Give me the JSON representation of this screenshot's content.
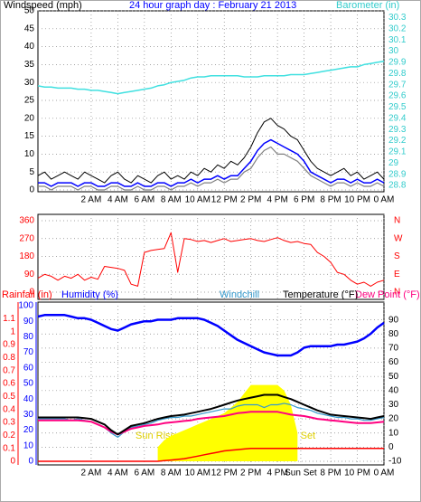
{
  "chart_data": [
    {
      "type": "line",
      "title": "24 hour graph day : February 21 2013",
      "y_label": "Windspeed (mph)",
      "y2_label": "Barometer (in)",
      "grid": true,
      "x": [
        -2,
        -1.5,
        -1,
        -0.5,
        0,
        0.5,
        1,
        1.5,
        2,
        2.5,
        3,
        3.5,
        4,
        4.5,
        5,
        5.5,
        6,
        6.5,
        7,
        7.5,
        8,
        8.5,
        9,
        9.5,
        10,
        10.5,
        11,
        11.5,
        12,
        12.5,
        13,
        13.5,
        14,
        14.5,
        15,
        15.5,
        16,
        16.5,
        17,
        17.5,
        18,
        18.5,
        19,
        19.5,
        20,
        20.5,
        21,
        21.5,
        22,
        22.5,
        23,
        23.5,
        24
      ],
      "xlim": [
        -2,
        24
      ],
      "xticks": [
        {
          "value": 2,
          "label": "2 AM"
        },
        {
          "value": 4,
          "label": "4 AM"
        },
        {
          "value": 6,
          "label": "6 AM"
        },
        {
          "value": 8,
          "label": "8 AM"
        },
        {
          "value": 10,
          "label": "10 AM"
        },
        {
          "value": 12,
          "label": "12 PM"
        },
        {
          "value": 14,
          "label": "2 PM"
        },
        {
          "value": 16,
          "label": "4 PM"
        },
        {
          "value": 18,
          "label": "6 PM"
        },
        {
          "value": 20,
          "label": "8 PM"
        },
        {
          "value": 22,
          "label": "10 PM"
        },
        {
          "value": 24,
          "label": "0 AM"
        }
      ],
      "ylim": [
        0,
        50
      ],
      "yticks": [
        0,
        5,
        10,
        15,
        20,
        25,
        30,
        35,
        40,
        45,
        50
      ],
      "y2lim": [
        28.76,
        30.36
      ],
      "y2ticks": [
        28.8,
        28.9,
        29,
        29.1,
        29.2,
        29.3,
        29.4,
        29.5,
        29.6,
        29.7,
        29.8,
        29.9,
        30,
        30.1,
        30.2,
        30.3
      ],
      "series": [
        {
          "color": "#000000",
          "values": [
            4,
            5,
            3,
            4,
            5,
            4,
            3,
            5,
            4,
            3,
            2,
            4,
            5,
            3,
            2,
            4,
            3,
            2,
            4,
            5,
            3,
            4,
            3,
            5,
            4,
            6,
            5,
            7,
            6,
            8,
            7,
            9,
            12,
            16,
            19,
            20,
            18,
            17,
            15,
            14,
            11,
            8,
            6,
            5,
            4,
            5,
            6,
            4,
            5,
            3,
            4,
            5,
            3
          ]
        },
        {
          "color": "#808080",
          "values": [
            1,
            1,
            0,
            1,
            1,
            1,
            0,
            1,
            1,
            0,
            0,
            1,
            1,
            0,
            0,
            1,
            0,
            0,
            1,
            1,
            0,
            1,
            1,
            2,
            1,
            2,
            2,
            3,
            2,
            3,
            3,
            5,
            6,
            9,
            11,
            12,
            10,
            10,
            9,
            8,
            6,
            4,
            3,
            2,
            1,
            2,
            2,
            1,
            2,
            1,
            1,
            2,
            1
          ]
        },
        {
          "color": "#0000ff",
          "values": [
            2,
            2,
            1,
            2,
            2,
            2,
            1,
            2,
            2,
            1,
            1,
            2,
            2,
            1,
            1,
            2,
            1,
            1,
            2,
            2,
            1,
            2,
            2,
            3,
            2,
            3,
            3,
            4,
            3,
            4,
            4,
            6,
            8,
            11,
            13,
            14,
            13,
            12,
            11,
            10,
            8,
            5,
            4,
            3,
            2,
            3,
            3,
            2,
            3,
            2,
            2,
            3,
            2
          ]
        },
        {
          "color": "#40e0e0",
          "axis": "y2",
          "values": [
            29.69,
            29.68,
            29.68,
            29.67,
            29.67,
            29.67,
            29.66,
            29.66,
            29.65,
            29.65,
            29.64,
            29.63,
            29.62,
            29.63,
            29.64,
            29.65,
            29.66,
            29.67,
            29.69,
            29.7,
            29.72,
            29.73,
            29.74,
            29.76,
            29.77,
            29.77,
            29.78,
            29.78,
            29.78,
            29.78,
            29.78,
            29.77,
            29.77,
            29.77,
            29.78,
            29.78,
            29.78,
            29.78,
            29.79,
            29.79,
            29.79,
            29.8,
            29.81,
            29.82,
            29.83,
            29.84,
            29.85,
            29.86,
            29.86,
            29.88,
            29.89,
            29.9,
            29.91
          ]
        }
      ]
    },
    {
      "type": "line",
      "grid": true,
      "x": [
        -2,
        -1.5,
        -1,
        -0.5,
        0,
        0.5,
        1,
        1.5,
        2,
        2.5,
        3,
        3.5,
        4,
        4.5,
        5,
        5.5,
        6,
        6.5,
        7,
        7.5,
        8,
        8.5,
        9,
        9.5,
        10,
        10.5,
        11,
        11.5,
        12,
        12.5,
        13,
        13.5,
        14,
        14.5,
        15,
        15.5,
        16,
        16.5,
        17,
        17.5,
        18,
        18.5,
        19,
        19.5,
        20,
        20.5,
        21,
        21.5,
        22,
        22.5,
        23,
        23.5,
        24
      ],
      "xlim": [
        -2,
        24
      ],
      "xticks": [
        2,
        4,
        6,
        8,
        10,
        12,
        14,
        16,
        18,
        20,
        22,
        24
      ],
      "ylim": [
        0,
        360
      ],
      "yticks": [
        0,
        90,
        180,
        270,
        360
      ],
      "y2lim": [
        0,
        360
      ],
      "y2ticks": [
        {
          "value": 0,
          "label": "N"
        },
        {
          "value": 90,
          "label": "E"
        },
        {
          "value": 180,
          "label": "S"
        },
        {
          "value": 270,
          "label": "W"
        },
        {
          "value": 360,
          "label": "N"
        }
      ],
      "series": [
        {
          "color": "#ff0000",
          "values": [
            70,
            90,
            80,
            60,
            80,
            70,
            90,
            60,
            75,
            65,
            130,
            125,
            120,
            110,
            40,
            30,
            200,
            210,
            215,
            220,
            300,
            100,
            270,
            265,
            255,
            260,
            250,
            260,
            270,
            255,
            260,
            265,
            270,
            260,
            255,
            265,
            275,
            260,
            250,
            255,
            245,
            240,
            200,
            180,
            150,
            100,
            90,
            60,
            40,
            50,
            30,
            50,
            60
          ]
        }
      ]
    },
    {
      "type": "line",
      "grid": true,
      "x": [
        -2,
        -1.5,
        -1,
        -0.5,
        0,
        0.5,
        1,
        1.5,
        2,
        2.5,
        3,
        3.5,
        4,
        4.5,
        5,
        5.5,
        6,
        6.5,
        7,
        7.5,
        8,
        8.5,
        9,
        9.5,
        10,
        10.5,
        11,
        11.5,
        12,
        12.5,
        13,
        13.5,
        14,
        14.5,
        15,
        15.5,
        16,
        16.5,
        17,
        17.5,
        18,
        18.5,
        19,
        19.5,
        20,
        20.5,
        21,
        21.5,
        22,
        22.5,
        23,
        23.5,
        24
      ],
      "xlim": [
        -2,
        24
      ],
      "xticks": [
        {
          "value": 2,
          "label": "2 AM"
        },
        {
          "value": 4,
          "label": "4 AM"
        },
        {
          "value": 6,
          "label": "6 AM"
        },
        {
          "value": 8,
          "label": "8 AM"
        },
        {
          "value": 10,
          "label": "10 AM"
        },
        {
          "value": 12,
          "label": "12 PM"
        },
        {
          "value": 14,
          "label": "2 PM"
        },
        {
          "value": 16,
          "label": "4 PM"
        },
        {
          "value": 17.75,
          "label": "Sun Set"
        },
        {
          "value": 20,
          "label": "8 PM"
        },
        {
          "value": 22,
          "label": "10 PM"
        },
        {
          "value": 24,
          "label": "0 AM"
        }
      ],
      "ylim": [
        -10,
        100
      ],
      "yticks": [
        -10,
        0,
        10,
        20,
        30,
        40,
        50,
        60,
        70,
        80,
        90
      ],
      "y2lim": [
        0,
        100
      ],
      "y2ticks": [
        0,
        10,
        20,
        30,
        40,
        50,
        60,
        70,
        80,
        90,
        100
      ],
      "y3lim": [
        0,
        1.2
      ],
      "y3ticks": [
        0,
        0.1,
        0.2,
        0.3,
        0.4,
        0.5,
        0.6,
        0.7,
        0.8,
        0.9,
        1,
        1.1
      ],
      "annotations": [
        "Sun Rise",
        "Sun Set"
      ],
      "series": [
        {
          "color": "#ffff00",
          "kind": "area",
          "values": [
            null,
            null,
            null,
            null,
            null,
            null,
            null,
            null,
            null,
            null,
            null,
            null,
            null,
            null,
            null,
            null,
            null,
            null,
            0,
            5,
            8,
            10,
            12,
            14,
            16,
            18,
            20,
            22,
            24,
            28,
            32,
            38,
            44,
            44,
            44,
            44,
            44,
            40,
            30,
            10,
            null,
            null,
            null,
            null,
            null,
            null,
            null,
            null,
            null,
            null,
            null,
            null,
            null
          ]
        },
        {
          "name": "Rainfall (in)",
          "color": "#ff0000",
          "axis": "y3",
          "values": [
            0,
            0,
            0,
            0,
            0,
            0,
            0,
            0,
            0,
            0,
            0,
            0,
            0,
            0,
            0,
            0,
            0,
            0,
            0,
            0.005,
            0.01,
            0.015,
            0.02,
            0.03,
            0.04,
            0.05,
            0.06,
            0.07,
            0.08,
            0.085,
            0.09,
            0.095,
            0.1,
            0.1,
            0.1,
            0.1,
            0.1,
            0.1,
            0.1,
            0.1,
            0.1,
            0.1,
            0.1,
            0.1,
            0.1,
            0.1,
            0.1,
            0.1,
            0.1,
            0.1,
            0.1,
            0.1,
            0.1
          ]
        },
        {
          "name": "Humidity (%)",
          "color": "#0000ff",
          "axis": "y2",
          "values": [
            93,
            94,
            94,
            94,
            94,
            93,
            92,
            92,
            91,
            89,
            87,
            85,
            84,
            86,
            88,
            89,
            90,
            90,
            91,
            91,
            91,
            92,
            92,
            92,
            92,
            91,
            89,
            87,
            84,
            81,
            78,
            76,
            74,
            72,
            70,
            69,
            68,
            68,
            68,
            70,
            73,
            74,
            74,
            74,
            74,
            75,
            75,
            76,
            77,
            79,
            82,
            86,
            89
          ]
        },
        {
          "name": "Windchill",
          "color": "#3399cc",
          "values": [
            20,
            20,
            20,
            20,
            20,
            19,
            20,
            19,
            18,
            16,
            14,
            10,
            7,
            11,
            14,
            15,
            16,
            17,
            19,
            20,
            21,
            21,
            22,
            22,
            23,
            24,
            25,
            26,
            27,
            27,
            29,
            30,
            30,
            30,
            28,
            30,
            30,
            31,
            30,
            28,
            27,
            26,
            24,
            23,
            22,
            21,
            21,
            20,
            20,
            19,
            19,
            20,
            21
          ]
        },
        {
          "name": "Dew Point (°F)",
          "color": "#ff0080",
          "values": [
            19,
            19,
            19,
            19,
            19,
            19,
            19,
            18.5,
            18,
            16,
            14,
            11,
            9,
            11,
            13,
            14,
            15,
            15.5,
            16,
            17,
            17.5,
            18,
            18.5,
            19,
            20,
            20.5,
            21,
            21.5,
            22,
            23,
            24,
            24.5,
            25,
            25,
            25,
            25,
            25,
            24,
            23,
            22.5,
            22,
            21,
            20,
            19.5,
            19,
            18.5,
            18,
            17.5,
            17,
            17,
            17,
            17.5,
            18
          ]
        },
        {
          "name": "Temperature (°F)",
          "color": "#000000",
          "values": [
            21,
            21,
            21,
            21,
            21,
            21,
            21,
            20.5,
            20,
            18,
            16,
            12,
            9,
            12,
            15,
            16,
            17,
            18.5,
            20,
            21,
            22,
            22.5,
            23,
            24,
            25,
            26,
            27,
            28.5,
            30,
            31.5,
            33,
            34,
            35,
            36,
            37,
            37,
            37,
            35.5,
            34,
            32,
            30,
            28,
            26,
            24.5,
            23,
            22.5,
            22,
            21.5,
            21,
            20.5,
            20,
            21,
            22
          ]
        }
      ]
    }
  ]
}
